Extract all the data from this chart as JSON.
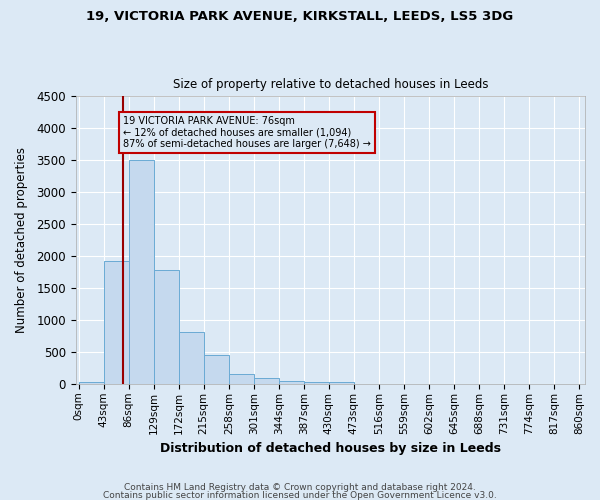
{
  "title1": "19, VICTORIA PARK AVENUE, KIRKSTALL, LEEDS, LS5 3DG",
  "title2": "Size of property relative to detached houses in Leeds",
  "xlabel": "Distribution of detached houses by size in Leeds",
  "ylabel": "Number of detached properties",
  "footer1": "Contains HM Land Registry data © Crown copyright and database right 2024.",
  "footer2": "Contains public sector information licensed under the Open Government Licence v3.0.",
  "bin_edges": [
    0,
    43,
    86,
    129,
    172,
    215,
    258,
    301,
    344,
    387,
    430,
    473,
    516,
    559,
    602,
    645,
    688,
    731,
    774,
    817,
    860
  ],
  "bin_labels": [
    "0sqm",
    "43sqm",
    "86sqm",
    "129sqm",
    "172sqm",
    "215sqm",
    "258sqm",
    "301sqm",
    "344sqm",
    "387sqm",
    "430sqm",
    "473sqm",
    "516sqm",
    "559sqm",
    "602sqm",
    "645sqm",
    "688sqm",
    "731sqm",
    "774sqm",
    "817sqm",
    "860sqm"
  ],
  "bar_heights": [
    30,
    1920,
    3500,
    1780,
    820,
    450,
    155,
    90,
    50,
    35,
    25,
    5,
    0,
    0,
    0,
    0,
    0,
    0,
    0,
    0
  ],
  "bar_color": "#c5d9ee",
  "bar_edge_color": "#6aaad4",
  "bg_color": "#dce9f5",
  "grid_color": "#ffffff",
  "red_line_x": 76,
  "ylim": [
    0,
    4500
  ],
  "annotation_line1": "19 VICTORIA PARK AVENUE: 76sqm",
  "annotation_line2": "← 12% of detached houses are smaller (1,094)",
  "annotation_line3": "87% of semi-detached houses are larger (7,648) →",
  "property_size": 76,
  "ann_border_color": "#c00000",
  "red_line_color": "#990000"
}
